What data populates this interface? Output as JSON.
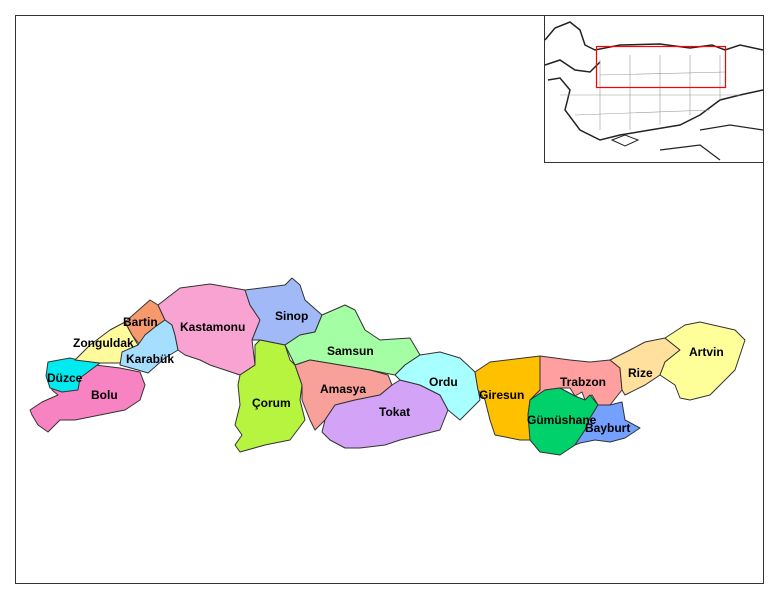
{
  "provinces": [
    {
      "name": "Bolu",
      "color": "#f883c2"
    },
    {
      "name": "Düzce",
      "color": "#00eaf0"
    },
    {
      "name": "Zonguldak",
      "color": "#fffa9c"
    },
    {
      "name": "Bartin",
      "color": "#f69a6e"
    },
    {
      "name": "Karabük",
      "color": "#a6deff"
    },
    {
      "name": "Kastamonu",
      "color": "#f9a3d3"
    },
    {
      "name": "Sinop",
      "color": "#a1b9f7"
    },
    {
      "name": "Çorum",
      "color": "#b7f43f"
    },
    {
      "name": "Samsun",
      "color": "#a4ffa4"
    },
    {
      "name": "Amasya",
      "color": "#f8a09a"
    },
    {
      "name": "Tokat",
      "color": "#d3a3f7"
    },
    {
      "name": "Ordu",
      "color": "#a8ffff"
    },
    {
      "name": "Giresun",
      "color": "#ffc000"
    },
    {
      "name": "Trabzon",
      "color": "#ff9f9f"
    },
    {
      "name": "Gümüshane",
      "color": "#00d16a"
    },
    {
      "name": "Bayburt",
      "color": "#74a1ff"
    },
    {
      "name": "Rize",
      "color": "#ffe09c"
    },
    {
      "name": "Artvin",
      "color": "#ffff99"
    }
  ],
  "inset": {
    "highlight_color": "#ff0000",
    "border_color": "#000000"
  }
}
